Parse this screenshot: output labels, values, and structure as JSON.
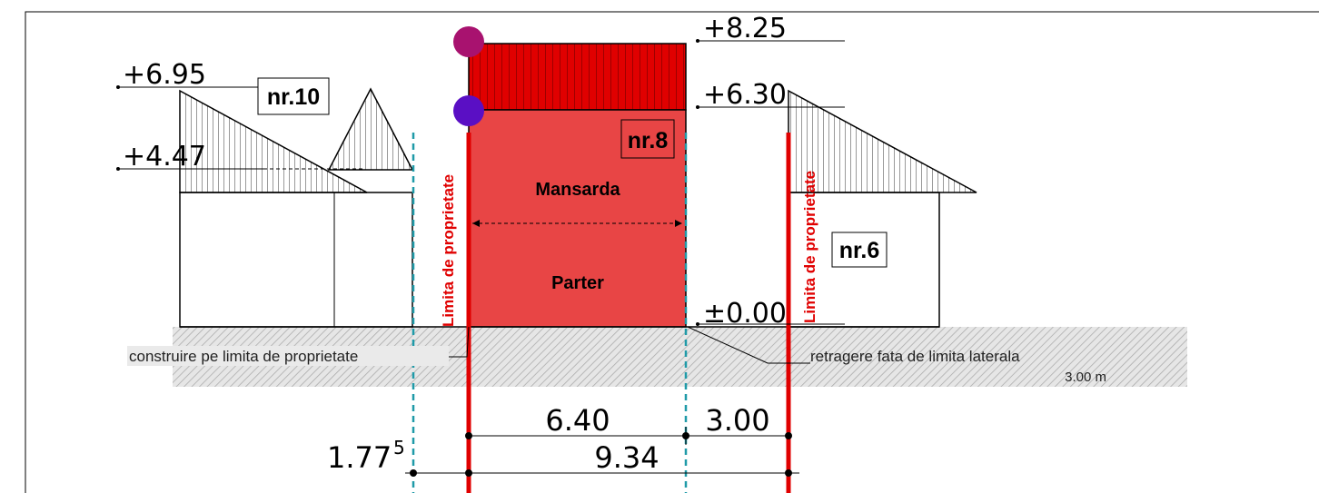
{
  "levels": {
    "ridge_main": "+8.25",
    "eave_main": "+6.30",
    "ground": "±0.00",
    "ridge_left": "+6.95",
    "eave_left": "+4.47"
  },
  "buildings": {
    "left": "nr.10",
    "main": "nr.8",
    "right": "nr.6"
  },
  "floors": {
    "upper": "Mansarda",
    "ground": "Parter"
  },
  "property_limit_label": "Limita de proprietate",
  "notes": {
    "left": "construire pe limita de proprietate",
    "right": "retragere fata de limita laterala",
    "right_value": "3.00 m"
  },
  "dimensions": {
    "width_main": "6.40",
    "setback": "3.00",
    "total": "9.34",
    "left_offset": "1.77",
    "left_offset_sup": "5"
  },
  "colors": {
    "main_body": "#e84545",
    "roof": "#e00000",
    "limit_line": "#e00000",
    "axis": "#1f9aa8",
    "marker_top": "#a8126f",
    "marker_bottom": "#5a0fc4"
  }
}
